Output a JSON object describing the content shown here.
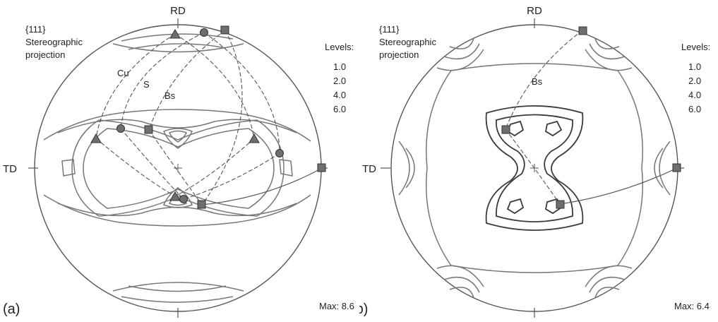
{
  "figure": {
    "panel_a": {
      "letter": "(a)",
      "plane": "{111}",
      "projection_line1": "Stereographic",
      "projection_line2": "projection",
      "rd_label": "RD",
      "td_label": "TD",
      "levels_title": "Levels:",
      "levels": [
        "1.0",
        "2.0",
        "4.0",
        "6.0"
      ],
      "max_label": "Max: 8.6",
      "components": [
        "Cu",
        "S",
        "Bs"
      ]
    },
    "panel_b": {
      "letter": "(b)",
      "plane": "{111}",
      "projection_line1": "Stereographic",
      "projection_line2": "projection",
      "rd_label": "RD",
      "td_label": "TD",
      "levels_title": "Levels:",
      "levels": [
        "1.0",
        "2.0",
        "4.0",
        "6.0"
      ],
      "max_label": "Max: 6.4",
      "components": [
        "Bs"
      ]
    }
  },
  "marker_legend": {
    "Cu": "triangle",
    "S": "circle",
    "Bs": "square"
  }
}
